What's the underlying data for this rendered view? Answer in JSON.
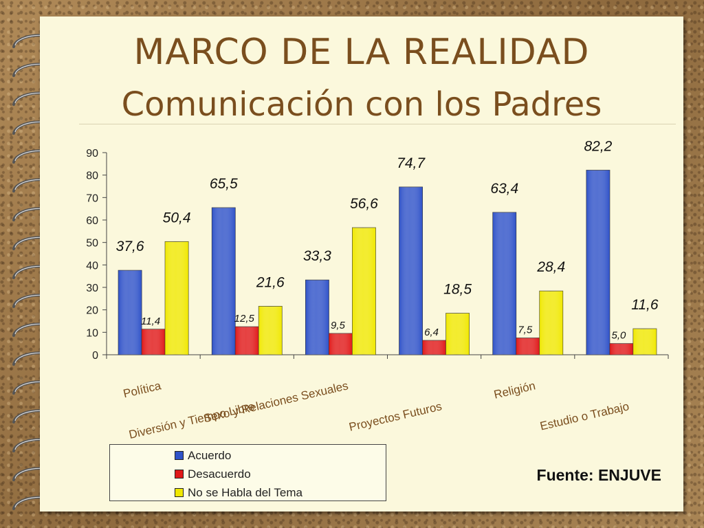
{
  "slide": {
    "title": "MARCO DE LA REALIDAD",
    "subtitle": "Comunicación con los Padres",
    "source": "Fuente: ENJUVE"
  },
  "chart_data": {
    "type": "bar",
    "categories": [
      "Política",
      "Diversión y Tiempo Libre",
      "Sexo y Relaciones Sexuales",
      "Proyectos Futuros",
      "Religión",
      "Estudio o Trabajo"
    ],
    "series": [
      {
        "name": "Acuerdo",
        "color": "#2f52c8",
        "values": [
          37.6,
          65.5,
          33.3,
          74.7,
          63.4,
          82.2
        ],
        "labels": [
          "37,6",
          "65,5",
          "33,3",
          "74,7",
          "63,4",
          "82,2"
        ]
      },
      {
        "name": "Desacuerdo",
        "color": "#e01818",
        "values": [
          11.4,
          12.5,
          9.5,
          6.4,
          7.5,
          5.0
        ],
        "labels": [
          "11,4",
          "12,5",
          "9,5",
          "6,4",
          "7,5",
          "5,0"
        ]
      },
      {
        "name": "No se Habla del Tema",
        "color": "#f0e800",
        "values": [
          50.4,
          21.6,
          56.6,
          18.5,
          28.4,
          11.6
        ],
        "labels": [
          "50,4",
          "21,6",
          "56,6",
          "18,5",
          "28,4",
          "11,6"
        ]
      }
    ],
    "ylim": [
      0,
      90
    ],
    "yticks": [
      0,
      10,
      20,
      30,
      40,
      50,
      60,
      70,
      80,
      90
    ],
    "legend": "bottom-left",
    "grid": false
  }
}
